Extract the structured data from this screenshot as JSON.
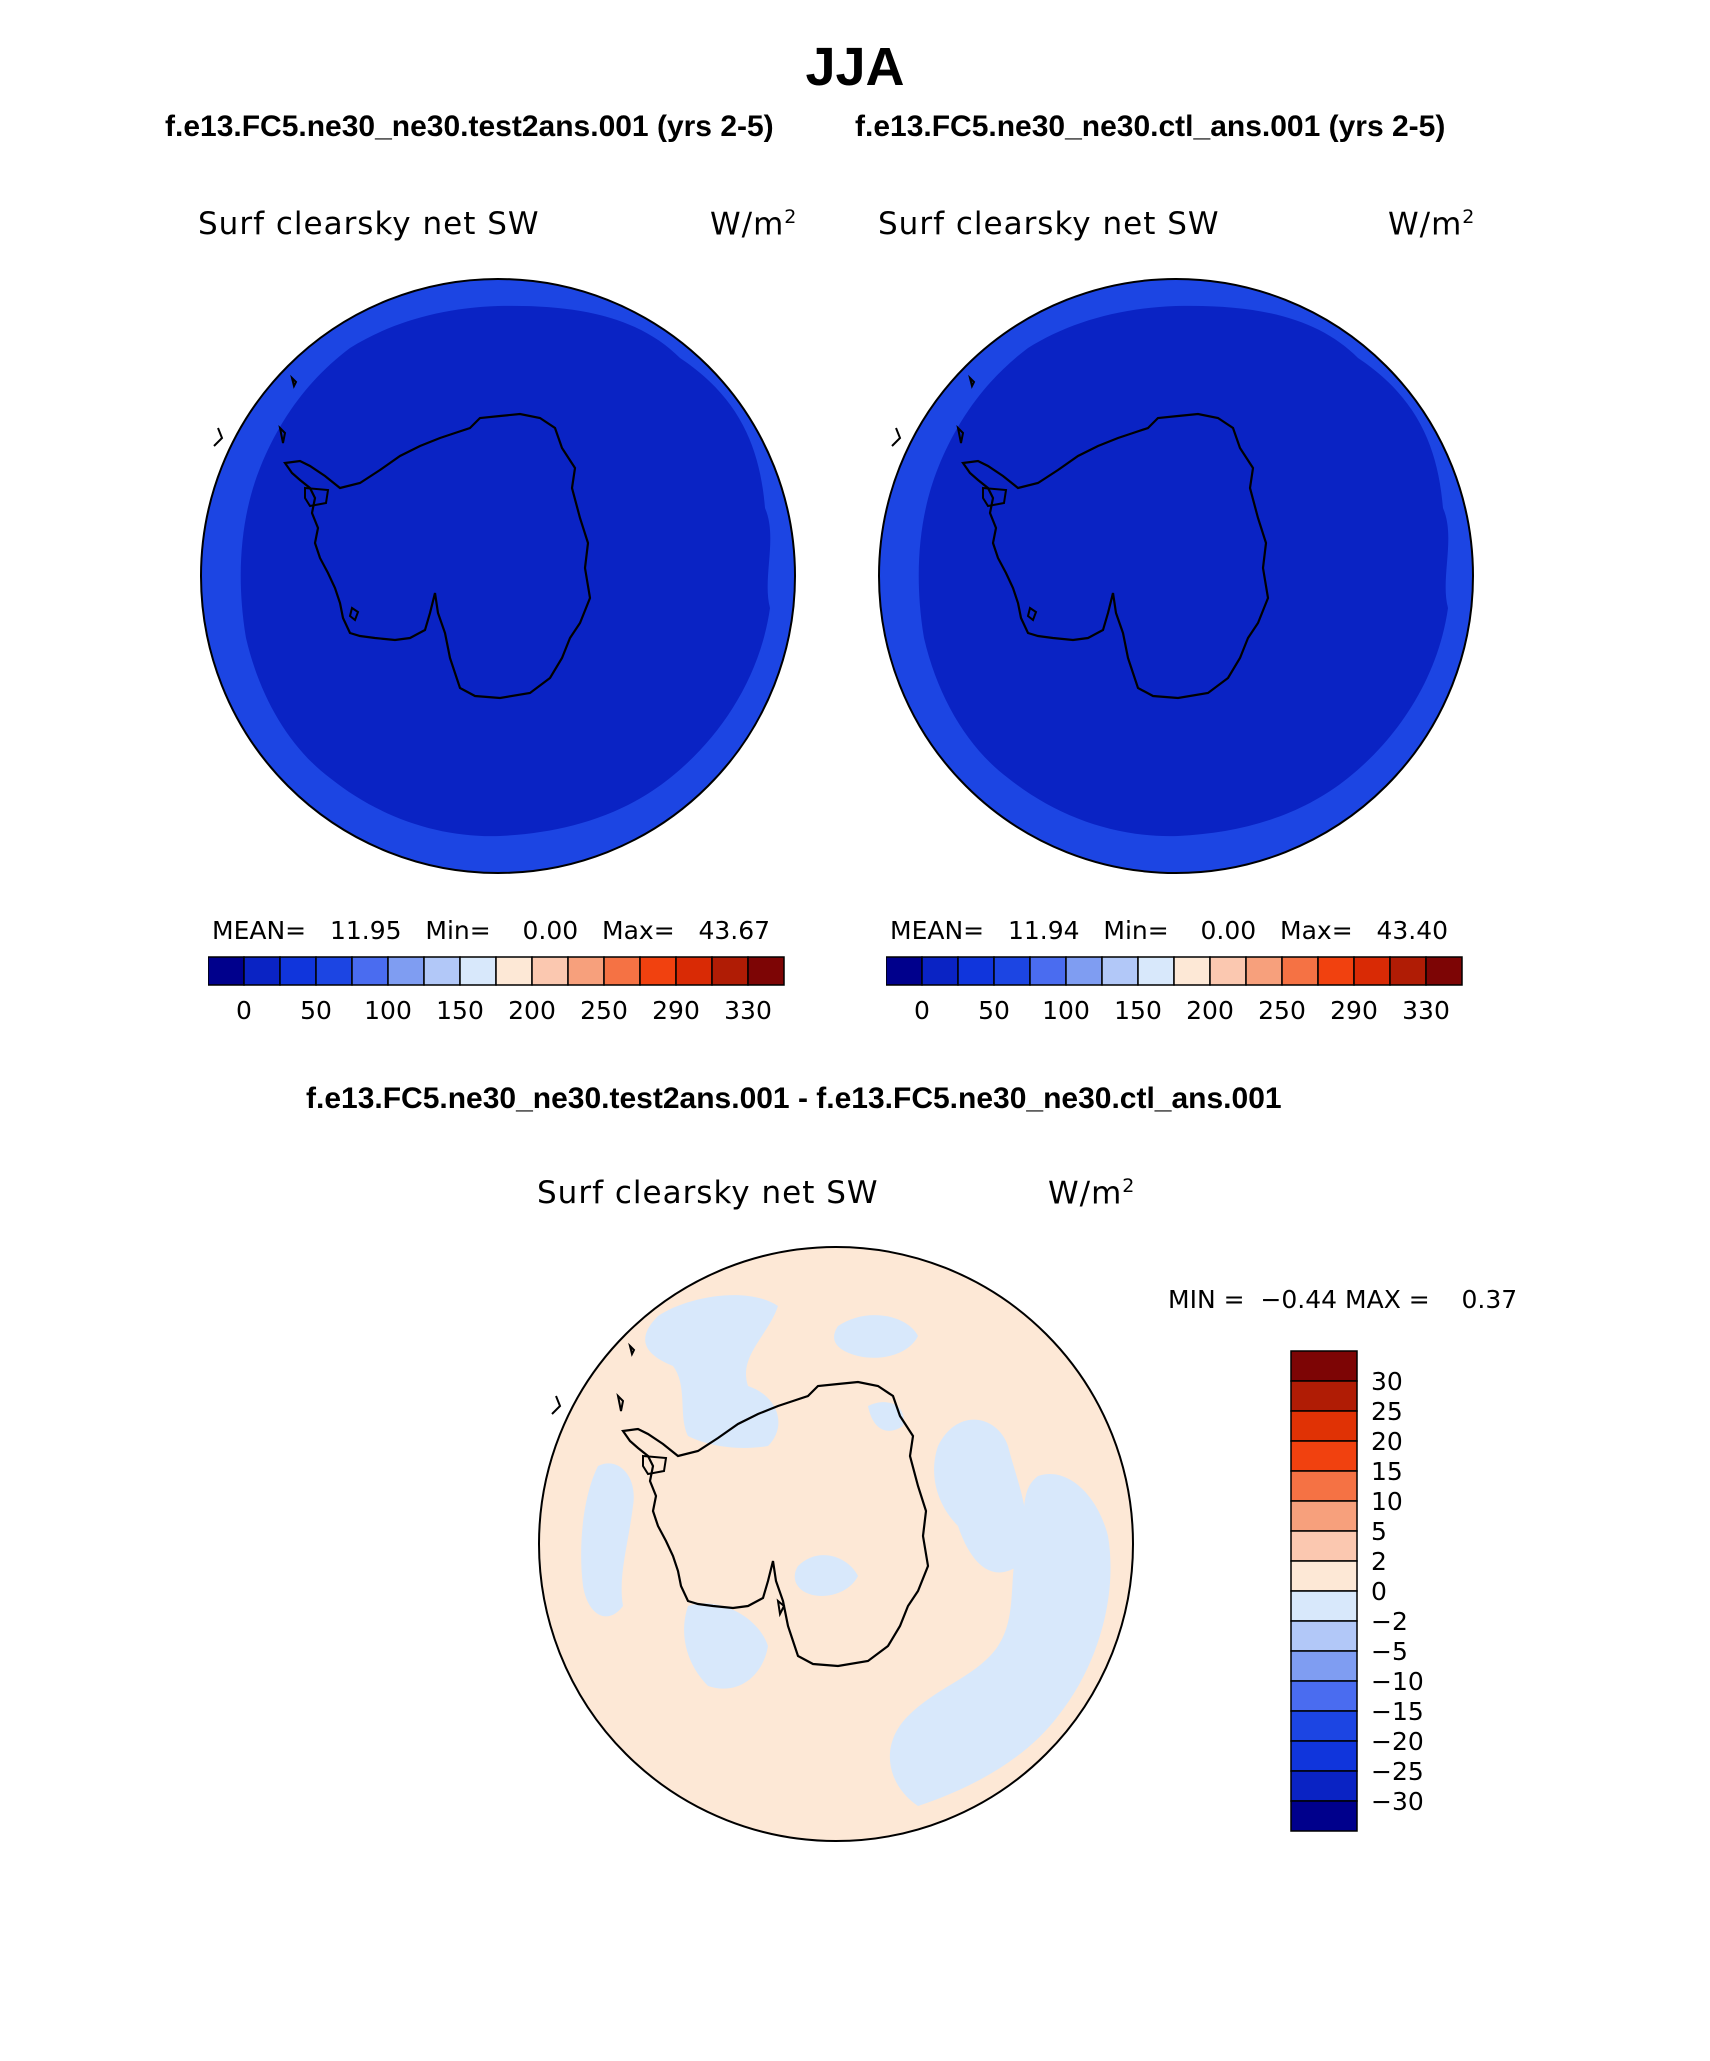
{
  "title": "JJA",
  "panels": [
    {
      "case": "f.e13.FC5.ne30_ne30.test2ans.001 (yrs 2-5)",
      "variable": "Surf clearsky net SW",
      "units": "W/m",
      "units_sup": "2",
      "mean_label": "MEAN=",
      "mean": "11.95",
      "min_label": "Min=",
      "min": "0.00",
      "max_label": "Max=",
      "max": "43.67",
      "ocean_color": "#1c45e3",
      "inner_color": "#0a23c4"
    },
    {
      "case": "f.e13.FC5.ne30_ne30.ctl_ans.001 (yrs 2-5)",
      "variable": "Surf clearsky net SW",
      "units": "W/m",
      "units_sup": "2",
      "mean_label": "MEAN=",
      "mean": "11.94",
      "min_label": "Min=",
      "min": "0.00",
      "max_label": "Max=",
      "max": "43.40",
      "ocean_color": "#1c45e3",
      "inner_color": "#0a23c4"
    }
  ],
  "colorbar": {
    "colors": [
      "#00008c",
      "#0a23c4",
      "#1035dc",
      "#1c45e3",
      "#4a6cf0",
      "#7f9df2",
      "#b2c8f8",
      "#d8e8fb",
      "#fde8d6",
      "#fbc8b0",
      "#f7a07c",
      "#f57244",
      "#f1410f",
      "#d92a05",
      "#b01c05",
      "#7d0505"
    ],
    "labels": [
      "0",
      "50",
      "100",
      "150",
      "200",
      "250",
      "290",
      "330"
    ]
  },
  "difference": {
    "case": "f.e13.FC5.ne30_ne30.test2ans.001 - f.e13.FC5.ne30_ne30.ctl_ans.001",
    "variable": "Surf clearsky net SW",
    "units": "W/m",
    "units_sup": "2",
    "min_label": "MIN =",
    "min": "−0.44",
    "max_label": "MAX =",
    "max": "0.37",
    "background_color": "#fde8d6",
    "negative_color": "#d8e8fb"
  },
  "diff_colorbar": {
    "colors": [
      "#7d0505",
      "#b01c05",
      "#e03205",
      "#f1410f",
      "#f57244",
      "#f7a07c",
      "#fbc8b0",
      "#fde8d6",
      "#d8e8fb",
      "#b2c8f8",
      "#7f9df2",
      "#4a6cf0",
      "#1c45e3",
      "#1035dc",
      "#0a23c4",
      "#00008c"
    ],
    "labels": [
      "30",
      "25",
      "20",
      "15",
      "10",
      "5",
      "2",
      "0",
      "−2",
      "−5",
      "−10",
      "−15",
      "−20",
      "−25",
      "−30"
    ]
  }
}
